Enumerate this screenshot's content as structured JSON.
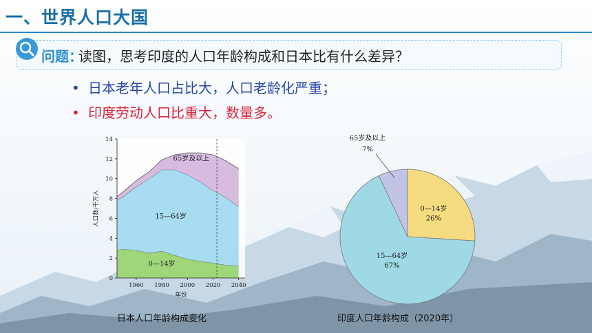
{
  "slide": {
    "title": "一、世界人口大国",
    "question_label": "问题：",
    "question_text": "读图，思考印度的人口年龄构成和日本比有什么差异？",
    "bullets": [
      {
        "dot": "•",
        "text": "日本老年人口占比大，人口老龄化严重；",
        "color": "#2546a8"
      },
      {
        "dot": "•",
        "text": "印度劳动人口比重大，数量多。",
        "color": "#d8233a"
      }
    ],
    "caption_japan": "日本人口年龄构成变化",
    "caption_india": "印度人口年龄构成（2020年）"
  },
  "chart_data": [
    {
      "type": "area",
      "title": "日本人口年龄构成变化",
      "xlabel": "年份",
      "ylabel": "人口数/千万人",
      "x_ticks": [
        "1960",
        "1980",
        "2000",
        "2020",
        "2040"
      ],
      "y_ticks": [
        "0",
        "2",
        "4",
        "6",
        "8",
        "10",
        "12",
        "14"
      ],
      "ylim": [
        0,
        14
      ],
      "xlim": [
        1945,
        2045
      ],
      "x": [
        1945,
        1950,
        1960,
        1970,
        1980,
        1990,
        2000,
        2010,
        2020,
        2025,
        2030,
        2040
      ],
      "series": [
        {
          "name": "0—14岁",
          "color": "#9fd67a",
          "values": [
            2.8,
            2.9,
            2.8,
            2.5,
            2.7,
            2.3,
            1.9,
            1.7,
            1.5,
            1.4,
            1.3,
            1.2
          ]
        },
        {
          "name": "15—64岁",
          "color": "#a8dcf2",
          "values": [
            5.0,
            5.3,
            6.4,
            7.5,
            8.2,
            8.6,
            8.5,
            8.0,
            7.3,
            7.1,
            6.8,
            6.0
          ]
        },
        {
          "name": "65岁及以上",
          "color": "#d8bce0",
          "values": [
            0.4,
            0.5,
            0.6,
            0.7,
            1.0,
            1.5,
            2.2,
            2.9,
            3.6,
            3.6,
            3.7,
            3.8
          ]
        }
      ],
      "dashed_year": 2023
    },
    {
      "type": "pie",
      "title": "印度人口年龄构成（2020年）",
      "slices": [
        {
          "name": "0—14岁",
          "label": "0—14岁",
          "percent_label": "26%",
          "value": 26,
          "color": "#f6dc80"
        },
        {
          "name": "15—64岁",
          "label": "15—64岁",
          "percent_label": "67%",
          "value": 67,
          "color": "#9fd9e6"
        },
        {
          "name": "65岁及以上",
          "label": "65岁及以上",
          "percent_label": "7%",
          "value": 7,
          "color": "#c2c4e6"
        }
      ]
    }
  ]
}
